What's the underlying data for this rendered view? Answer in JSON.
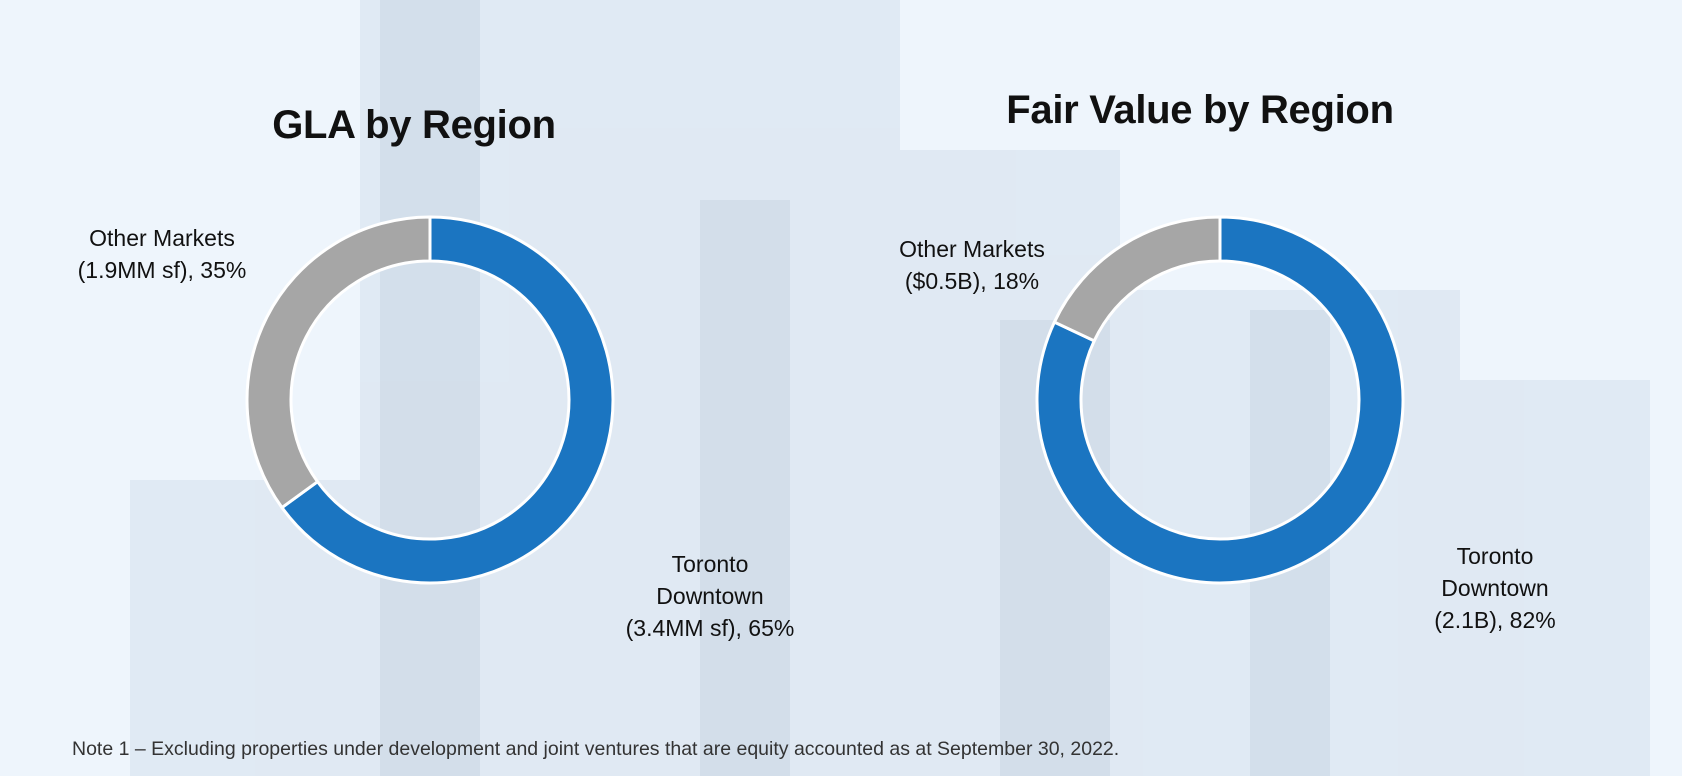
{
  "colors": {
    "toronto_downtown": "#1b75c1",
    "other_markets": "#a6a6a6",
    "accent_bar": "#1a8ee8"
  },
  "chart_data": [
    {
      "type": "pie",
      "title": "GLA by Region",
      "slices": [
        {
          "label_lines": [
            "Toronto",
            "Downtown",
            "(3.4MM sf), 65%"
          ],
          "value": 65
        },
        {
          "label_lines": [
            "Other Markets",
            "(1.9MM sf), 35%"
          ],
          "value": 35
        }
      ]
    },
    {
      "type": "pie",
      "title": "Fair Value by Region",
      "slices": [
        {
          "label_lines": [
            "Toronto",
            "Downtown",
            "(2.1B), 82%"
          ],
          "value": 82
        },
        {
          "label_lines": [
            "Other Markets",
            "($0.5B), 18%"
          ],
          "value": 18
        }
      ]
    }
  ],
  "footnote": "Note 1 – Excluding properties under development and joint ventures that are equity accounted as at September 30, 2022."
}
